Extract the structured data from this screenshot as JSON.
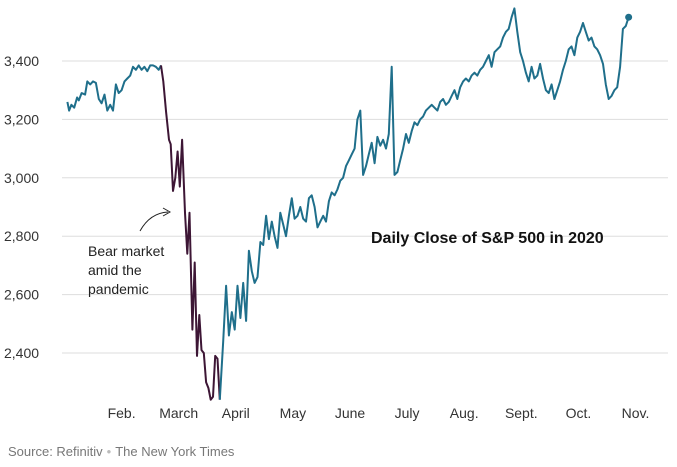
{
  "chart_data": {
    "type": "line",
    "title": "Daily Close of S&P 500 in 2020",
    "annotation": [
      "Bear market",
      "amid the",
      "pandemic"
    ],
    "source": "Source: Refinitiv",
    "credit": "The New York Times",
    "ylim": [
      2200,
      3600
    ],
    "yticks": [
      2400,
      2600,
      2800,
      3000,
      3200,
      3400
    ],
    "ytick_labels": [
      "2,400",
      "2,600",
      "2,800",
      "3,000",
      "3,200",
      "3,400"
    ],
    "month_labels": [
      "Feb.",
      "March",
      "April",
      "May",
      "June",
      "July",
      "Aug.",
      "Sept.",
      "Oct.",
      "Nov."
    ],
    "month_positions": [
      1,
      2,
      3,
      4,
      5,
      6,
      7,
      8,
      9,
      10
    ],
    "grid": true,
    "colors": {
      "normal": "#1f6f8b",
      "bear": "#3d1635",
      "grid": "#dddddd"
    },
    "series": [
      {
        "segment": "pre-bear",
        "x": [
          0.05,
          0.08,
          0.12,
          0.17,
          0.22,
          0.25,
          0.3,
          0.36,
          0.4,
          0.45,
          0.5,
          0.55,
          0.6,
          0.65,
          0.7,
          0.75,
          0.8,
          0.85,
          0.9,
          0.95,
          1.0,
          1.05,
          1.1,
          1.15,
          1.2,
          1.25,
          1.3,
          1.35,
          1.4,
          1.45,
          1.5,
          1.55,
          1.6,
          1.65,
          1.69
        ],
        "y": [
          3260,
          3230,
          3250,
          3240,
          3275,
          3265,
          3290,
          3285,
          3330,
          3320,
          3330,
          3325,
          3270,
          3255,
          3285,
          3230,
          3250,
          3230,
          3320,
          3290,
          3300,
          3330,
          3340,
          3350,
          3380,
          3370,
          3385,
          3370,
          3380,
          3365,
          3385,
          3385,
          3380,
          3370,
          3385
        ]
      },
      {
        "segment": "bear",
        "x": [
          1.69,
          1.73,
          1.78,
          1.83,
          1.86,
          1.9,
          1.94,
          1.98,
          2.02,
          2.06,
          2.11,
          2.15,
          2.19,
          2.24,
          2.28,
          2.32,
          2.36,
          2.4,
          2.44,
          2.48,
          2.52,
          2.56,
          2.6,
          2.64,
          2.68,
          2.72
        ],
        "y": [
          3385,
          3330,
          3225,
          3130,
          3115,
          2955,
          3000,
          3090,
          2970,
          3130,
          2880,
          2740,
          2880,
          2480,
          2710,
          2390,
          2530,
          2410,
          2400,
          2300,
          2280,
          2240,
          2250,
          2390,
          2380,
          2240
        ]
      },
      {
        "segment": "recovery",
        "x": [
          2.72,
          2.78,
          2.83,
          2.88,
          2.93,
          2.98,
          3.03,
          3.08,
          3.13,
          3.18,
          3.23,
          3.28,
          3.33,
          3.38,
          3.43,
          3.48,
          3.53,
          3.58,
          3.63,
          3.68,
          3.73,
          3.78,
          3.83,
          3.88,
          3.93,
          3.98,
          4.03,
          4.08,
          4.13,
          4.18,
          4.23,
          4.28,
          4.33,
          4.38,
          4.43,
          4.48,
          4.53,
          4.58,
          4.63,
          4.68,
          4.73,
          4.78,
          4.83,
          4.88,
          4.93,
          4.98,
          5.03,
          5.08,
          5.13,
          5.18,
          5.23,
          5.28,
          5.33,
          5.38,
          5.43,
          5.48,
          5.53,
          5.58,
          5.63,
          5.68,
          5.73,
          5.78,
          5.83,
          5.88,
          5.93,
          5.98,
          6.03,
          6.08,
          6.13,
          6.18,
          6.23,
          6.28,
          6.33,
          6.38,
          6.43,
          6.48,
          6.53,
          6.58,
          6.63,
          6.68,
          6.73,
          6.78,
          6.83,
          6.88,
          6.93,
          6.98,
          7.03,
          7.08,
          7.13,
          7.18,
          7.23,
          7.28,
          7.33,
          7.38,
          7.43,
          7.48,
          7.53,
          7.58,
          7.63,
          7.68,
          7.73,
          7.78,
          7.83,
          7.88,
          7.93,
          7.98,
          8.03,
          8.08,
          8.13,
          8.18,
          8.23,
          8.28,
          8.33,
          8.38,
          8.43,
          8.48,
          8.53,
          8.58,
          8.63,
          8.68,
          8.73,
          8.78,
          8.83,
          8.88,
          8.93,
          8.98,
          9.03,
          9.08,
          9.13,
          9.18,
          9.23,
          9.28,
          9.33,
          9.38,
          9.43,
          9.48,
          9.53,
          9.58,
          9.63,
          9.68,
          9.73,
          9.78,
          9.83,
          9.88
        ],
        "y": [
          2240,
          2440,
          2630,
          2460,
          2540,
          2480,
          2630,
          2520,
          2640,
          2510,
          2750,
          2680,
          2640,
          2660,
          2780,
          2770,
          2870,
          2790,
          2850,
          2800,
          2760,
          2880,
          2840,
          2800,
          2870,
          2930,
          2860,
          2870,
          2900,
          2860,
          2850,
          2930,
          2940,
          2900,
          2830,
          2850,
          2870,
          2850,
          2920,
          2950,
          2940,
          2960,
          2990,
          3000,
          3040,
          3060,
          3080,
          3100,
          3200,
          3230,
          3010,
          3040,
          3080,
          3120,
          3050,
          3140,
          3110,
          3130,
          3100,
          3150,
          3380,
          3010,
          3020,
          3060,
          3100,
          3150,
          3120,
          3160,
          3190,
          3180,
          3200,
          3210,
          3230,
          3240,
          3250,
          3240,
          3230,
          3260,
          3270,
          3250,
          3260,
          3280,
          3300,
          3270,
          3310,
          3330,
          3340,
          3330,
          3350,
          3360,
          3350,
          3370,
          3380,
          3400,
          3420,
          3380,
          3430,
          3440,
          3450,
          3480,
          3500,
          3510,
          3550,
          3580,
          3500,
          3430,
          3400,
          3360,
          3330,
          3380,
          3340,
          3350,
          3390,
          3340,
          3300,
          3290,
          3320,
          3270,
          3300,
          3330,
          3370,
          3400,
          3440,
          3450,
          3420,
          3480,
          3500,
          3530,
          3500,
          3470,
          3480,
          3450,
          3440,
          3420,
          3390,
          3320,
          3270,
          3280,
          3300,
          3310,
          3380,
          3510,
          3520,
          3550
        ]
      }
    ]
  }
}
